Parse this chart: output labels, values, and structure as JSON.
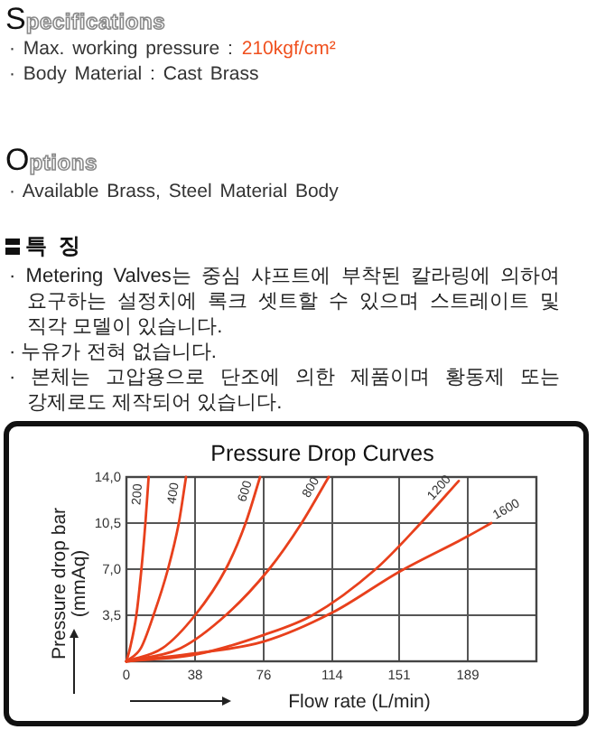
{
  "chart_data": {
    "type": "line",
    "title": "Pressure Drop Curves",
    "xlabel": "Flow rate (L/min)",
    "ylabel": "Pressure drop bar\n(mmAq)",
    "xlim": [
      0,
      227
    ],
    "xticks": [
      0,
      38,
      76,
      114,
      151,
      189
    ],
    "ylim": [
      0,
      14
    ],
    "yticks": [
      {
        "value": 3.5,
        "label": "3,5"
      },
      {
        "value": 7,
        "label": "7,0"
      },
      {
        "value": 10.5,
        "label": "10,5"
      },
      {
        "value": 14,
        "label": "14,0"
      }
    ],
    "grid": true,
    "line_style": "solid",
    "series": [
      {
        "name": "200",
        "color": "#e8401c",
        "x": [
          0,
          2,
          5.5,
          8.3,
          10.5,
          12.3
        ],
        "values": [
          0,
          1,
          3.5,
          7,
          10.5,
          14
        ]
      },
      {
        "name": "400",
        "color": "#e8401c",
        "x": [
          0,
          8,
          15,
          23,
          29,
          33
        ],
        "values": [
          0,
          1,
          3.5,
          7,
          10.5,
          14
        ]
      },
      {
        "name": "600",
        "color": "#e8401c",
        "x": [
          0,
          20,
          38,
          55,
          66,
          74
        ],
        "values": [
          0,
          1,
          3.5,
          7,
          10.5,
          14
        ]
      },
      {
        "name": "800",
        "color": "#e8401c",
        "x": [
          0,
          30,
          55,
          79,
          97,
          112
        ],
        "values": [
          0,
          1,
          3.5,
          7,
          10.5,
          14
        ]
      },
      {
        "name": "1200",
        "color": "#e8401c",
        "x": [
          0,
          38,
          76,
          103,
          138,
          163,
          184
        ],
        "values": [
          0,
          0.5,
          2,
          3.5,
          7,
          10.5,
          13.7
        ]
      },
      {
        "name": "1600",
        "color": "#e8401c",
        "x": [
          0,
          38,
          76,
          114,
          151,
          189,
          202
        ],
        "values": [
          0,
          0.6,
          1.5,
          3.7,
          6.8,
          9.5,
          10.5
        ]
      }
    ],
    "annotations": [
      "Specifications",
      "· Max. working pressure :",
      "210kgf/cm²",
      "· Body Material : Cast Brass",
      "Options",
      "· Available Brass, Steel Material Body",
      "특 징",
      "· Metering Valves는 중심 샤프트에 부착된 칼라링에 의하여 요구하는 설정치에 록크 셋트할 수 있으며 스트레이트 및 직각 모델이 있습니다.",
      "· 누유가 전혀 없습니다.",
      "· 본체는 고압용으로 단조에 의한 제품이며 황동제 또는 강제로도 제작되어 있습니다."
    ]
  }
}
